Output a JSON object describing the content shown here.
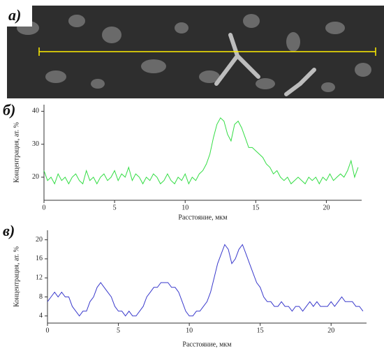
{
  "image_label": "а)",
  "chart_data": [
    {
      "type": "line",
      "panel_label": "б)",
      "xlabel": "Расстояние, мкм",
      "ylabel": "Концентрация, ат. %",
      "xlim": [
        0,
        22.5
      ],
      "ylim": [
        13,
        42
      ],
      "xticks": [
        0,
        5,
        10,
        15,
        20
      ],
      "yticks": [
        20,
        30,
        40
      ],
      "grid": false,
      "x": [
        0,
        0.25,
        0.5,
        0.75,
        1,
        1.25,
        1.5,
        1.75,
        2,
        2.25,
        2.5,
        2.75,
        3,
        3.25,
        3.5,
        3.75,
        4,
        4.25,
        4.5,
        4.75,
        5,
        5.25,
        5.5,
        5.75,
        6,
        6.25,
        6.5,
        6.75,
        7,
        7.25,
        7.5,
        7.75,
        8,
        8.25,
        8.5,
        8.75,
        9,
        9.25,
        9.5,
        9.75,
        10,
        10.25,
        10.5,
        10.75,
        11,
        11.25,
        11.5,
        11.75,
        12,
        12.25,
        12.5,
        12.75,
        13,
        13.25,
        13.5,
        13.75,
        14,
        14.25,
        14.5,
        14.75,
        15,
        15.25,
        15.5,
        15.75,
        16,
        16.25,
        16.5,
        16.75,
        17,
        17.25,
        17.5,
        17.75,
        18,
        18.25,
        18.5,
        18.75,
        19,
        19.25,
        19.5,
        19.75,
        20,
        20.25,
        20.5,
        20.75,
        21,
        21.25,
        21.5,
        21.75,
        22,
        22.25
      ],
      "series": [
        {
          "color": "#33dd44",
          "values": [
            22,
            19,
            20,
            18,
            21,
            19,
            20,
            18,
            20,
            21,
            19,
            18,
            22,
            19,
            20,
            18,
            20,
            21,
            19,
            20,
            22,
            19,
            21,
            20,
            23,
            19,
            21,
            20,
            18,
            20,
            19,
            21,
            20,
            18,
            19,
            21,
            19,
            18,
            20,
            19,
            21,
            18,
            20,
            19,
            21,
            22,
            24,
            27,
            32,
            36,
            38,
            37,
            33,
            31,
            36,
            37,
            35,
            32,
            29,
            29,
            28,
            27,
            26,
            24,
            23,
            21,
            22,
            20,
            19,
            20,
            18,
            19,
            20,
            19,
            18,
            20,
            19,
            20,
            18,
            20,
            19,
            21,
            19,
            20,
            21,
            20,
            22,
            25,
            20,
            23
          ]
        }
      ]
    },
    {
      "type": "line",
      "panel_label": "в)",
      "xlabel": "Расстояние, мкм",
      "ylabel": "Концентрация, ат. %",
      "xlim": [
        0,
        22.5
      ],
      "ylim": [
        2.5,
        22
      ],
      "xticks": [
        0,
        5,
        10,
        15,
        20
      ],
      "yticks": [
        4,
        8,
        12,
        16,
        20
      ],
      "grid": false,
      "x": [
        0,
        0.25,
        0.5,
        0.75,
        1,
        1.25,
        1.5,
        1.75,
        2,
        2.25,
        2.5,
        2.75,
        3,
        3.25,
        3.5,
        3.75,
        4,
        4.25,
        4.5,
        4.75,
        5,
        5.25,
        5.5,
        5.75,
        6,
        6.25,
        6.5,
        6.75,
        7,
        7.25,
        7.5,
        7.75,
        8,
        8.25,
        8.5,
        8.75,
        9,
        9.25,
        9.5,
        9.75,
        10,
        10.25,
        10.5,
        10.75,
        11,
        11.25,
        11.5,
        11.75,
        12,
        12.25,
        12.5,
        12.75,
        13,
        13.25,
        13.5,
        13.75,
        14,
        14.25,
        14.5,
        14.75,
        15,
        15.25,
        15.5,
        15.75,
        16,
        16.25,
        16.5,
        16.75,
        17,
        17.25,
        17.5,
        17.75,
        18,
        18.25,
        18.5,
        18.75,
        19,
        19.25,
        19.5,
        19.75,
        20,
        20.25,
        20.5,
        20.75,
        21,
        21.25,
        21.5,
        21.75,
        22,
        22.25
      ],
      "series": [
        {
          "color": "#3a3acc",
          "values": [
            7,
            8,
            9,
            8,
            9,
            8,
            8,
            6,
            5,
            4,
            5,
            5,
            7,
            8,
            10,
            11,
            10,
            9,
            8,
            6,
            5,
            5,
            4,
            5,
            4,
            4,
            5,
            6,
            8,
            9,
            10,
            10,
            11,
            11,
            11,
            10,
            10,
            9,
            7,
            5,
            4,
            4,
            5,
            5,
            6,
            7,
            9,
            12,
            15,
            17,
            19,
            18,
            15,
            16,
            18,
            19,
            17,
            15,
            13,
            11,
            10,
            8,
            7,
            7,
            6,
            6,
            7,
            6,
            6,
            5,
            6,
            6,
            5,
            6,
            7,
            6,
            7,
            6,
            6,
            6,
            7,
            6,
            7,
            8,
            7,
            7,
            7,
            6,
            6,
            5
          ]
        }
      ]
    }
  ]
}
